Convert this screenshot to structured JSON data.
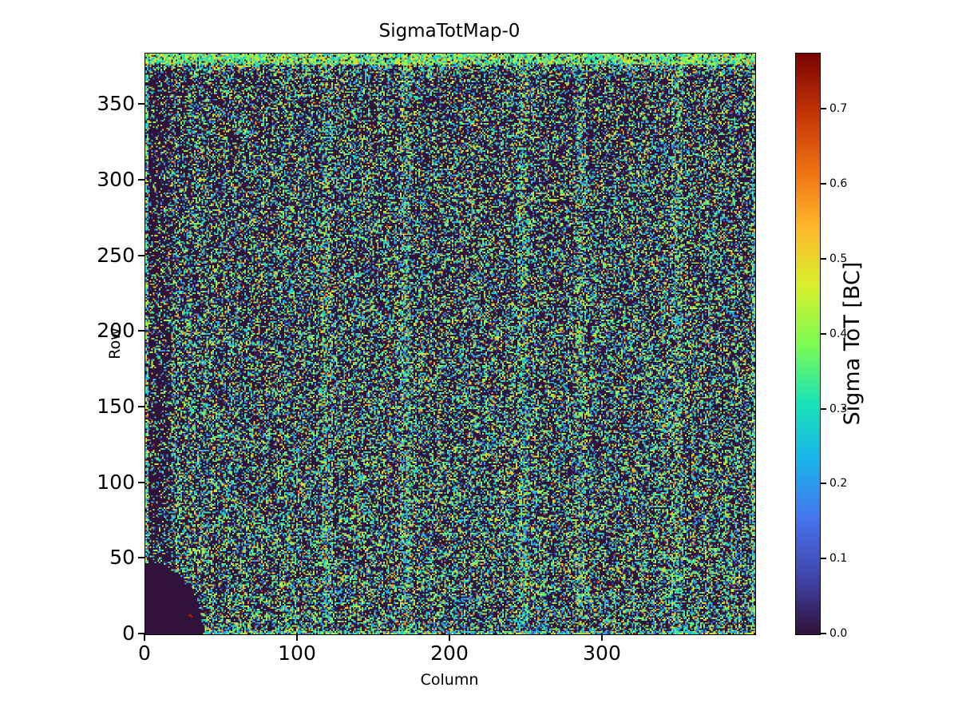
{
  "chart_data": {
    "type": "heatmap",
    "title": "SigmaTotMap-0",
    "xlabel": "Column",
    "ylabel": "Row",
    "colorbar_label": "Sigma ToT [BC]",
    "x_range": [
      0,
      400
    ],
    "y_range": [
      0,
      384
    ],
    "vmin": 0.0,
    "vmax": 0.775,
    "x_ticks": [
      "0",
      "100",
      "200",
      "300"
    ],
    "x_tick_values": [
      0,
      100,
      200,
      300
    ],
    "y_ticks": [
      "0",
      "50",
      "100",
      "150",
      "200",
      "250",
      "300",
      "350"
    ],
    "y_tick_values": [
      0,
      50,
      100,
      150,
      200,
      250,
      300,
      350
    ],
    "colorbar_ticks": [
      "0.0",
      "0.1",
      "0.2",
      "0.3",
      "0.4",
      "0.5",
      "0.6",
      "0.7"
    ],
    "colorbar_tick_values": [
      0.0,
      0.1,
      0.2,
      0.3,
      0.4,
      0.5,
      0.6,
      0.7
    ],
    "grid": false,
    "legend": "none",
    "colormap": {
      "name": "turbo",
      "stops": [
        [
          0.0,
          "#30123b"
        ],
        [
          0.1,
          "#4145ab"
        ],
        [
          0.2,
          "#4675ed"
        ],
        [
          0.3,
          "#1ab4eb"
        ],
        [
          0.4,
          "#1ae4b6"
        ],
        [
          0.5,
          "#7dfb50"
        ],
        [
          0.6,
          "#d8ef2c"
        ],
        [
          0.7,
          "#fdb82b"
        ],
        [
          0.8,
          "#ee7011"
        ],
        [
          0.9,
          "#c13206"
        ],
        [
          1.0,
          "#7a0403"
        ]
      ]
    },
    "heatmap": {
      "grid": {
        "cols": 400,
        "rows": 384
      },
      "seed": 1337,
      "background_value": 0.0,
      "noise": {
        "base_density": 0.34,
        "bottom_gradient": 0.1,
        "column_jitter": 0.08,
        "value_bins": [
          {
            "p": 0.12,
            "min": 0.04,
            "max": 0.18
          },
          {
            "p": 0.7,
            "min": 0.18,
            "max": 0.45
          },
          {
            "p": 0.14,
            "min": 0.45,
            "max": 0.58
          },
          {
            "p": 0.035,
            "min": 0.58,
            "max": 0.7
          },
          {
            "p": 0.005,
            "min": 0.7,
            "max": 0.775
          }
        ]
      },
      "features": {
        "top_band": {
          "row_start": 377,
          "density": 0.88,
          "value_min": 0.22,
          "value_max": 0.52,
          "hot_p": 0.05,
          "hot_min": 0.55,
          "hot_max": 0.72
        },
        "top_approach": {
          "row_start": 368,
          "density_boost": 0.22
        },
        "dead_blob": {
          "center_col": 0,
          "center_row": 0,
          "radius_col": 38,
          "radius_row": 47,
          "value": 0.0
        },
        "blob_specks": [
          {
            "col": 28,
            "row": 12,
            "value": 0.74
          },
          {
            "col": 29,
            "row": 12,
            "value": 0.7
          },
          {
            "col": 29,
            "row": 13,
            "value": 0.76
          },
          {
            "col": 30,
            "row": 11,
            "value": 0.68
          }
        ],
        "streak_cols": [
          119,
          170,
          247,
          285,
          348
        ],
        "streak_halfwidth": 3,
        "streak_density_boost": 0.18,
        "edge_density_boost": 0.3,
        "left_sparse": {
          "col_end": 16,
          "factor": 0.55
        }
      }
    }
  }
}
